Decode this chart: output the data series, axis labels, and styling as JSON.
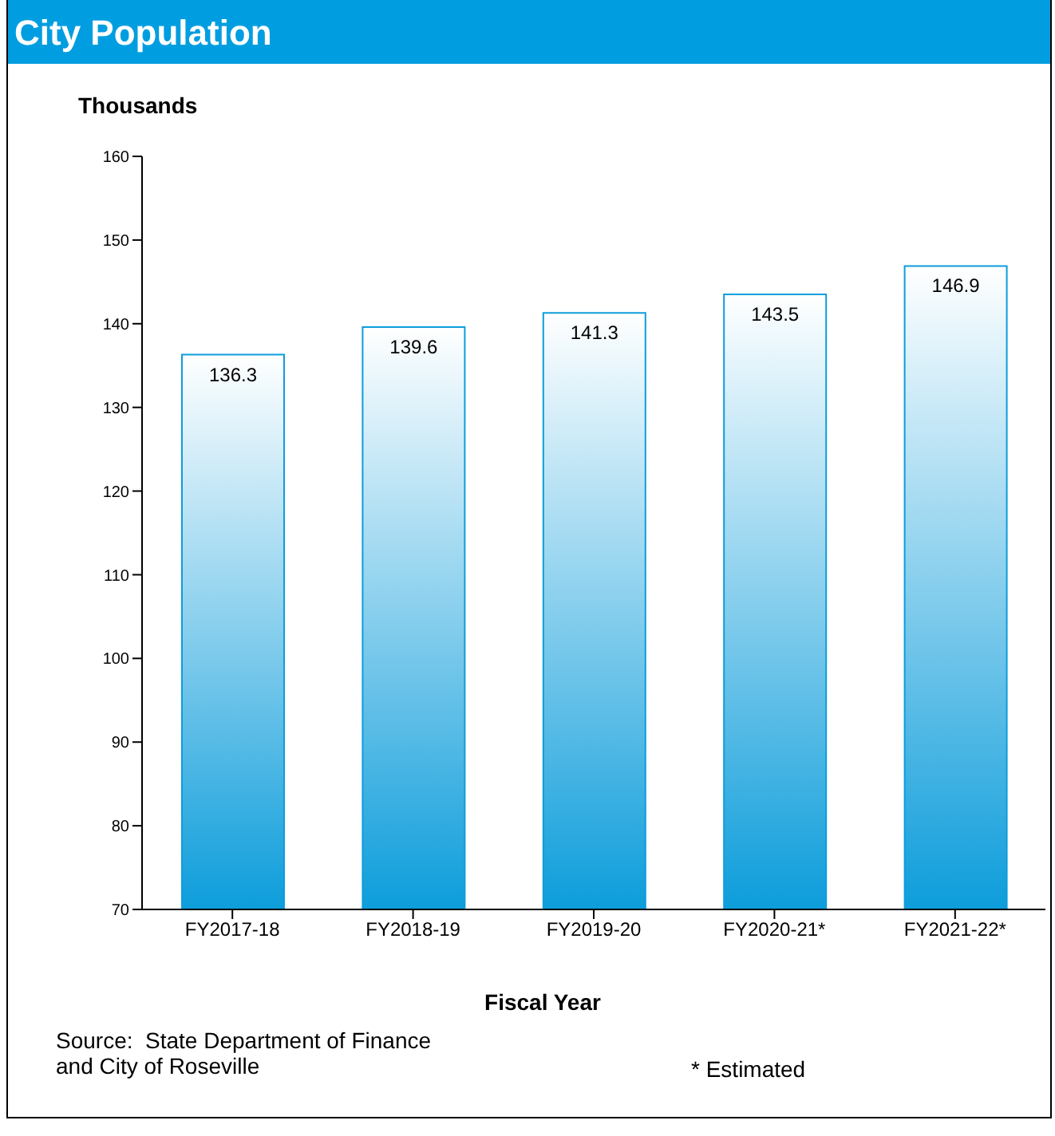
{
  "chart_data": {
    "type": "bar",
    "title": "City Population",
    "ylabel": "Thousands",
    "xlabel": "Fiscal Year",
    "categories": [
      "FY2017-18",
      "FY2018-19",
      "FY2019-20",
      "FY2020-21*",
      "FY2021-22*"
    ],
    "values": [
      136.3,
      139.6,
      141.3,
      143.5,
      146.9
    ],
    "color": "#0d9ddb",
    "ylim": [
      70,
      160
    ],
    "yticks": [
      70,
      80,
      90,
      100,
      110,
      120,
      130,
      140,
      150,
      160
    ],
    "grid": false,
    "data_labels": true,
    "annotations": [
      "Source:  State Department of Finance\nand City of Roseville",
      "* Estimated"
    ]
  }
}
